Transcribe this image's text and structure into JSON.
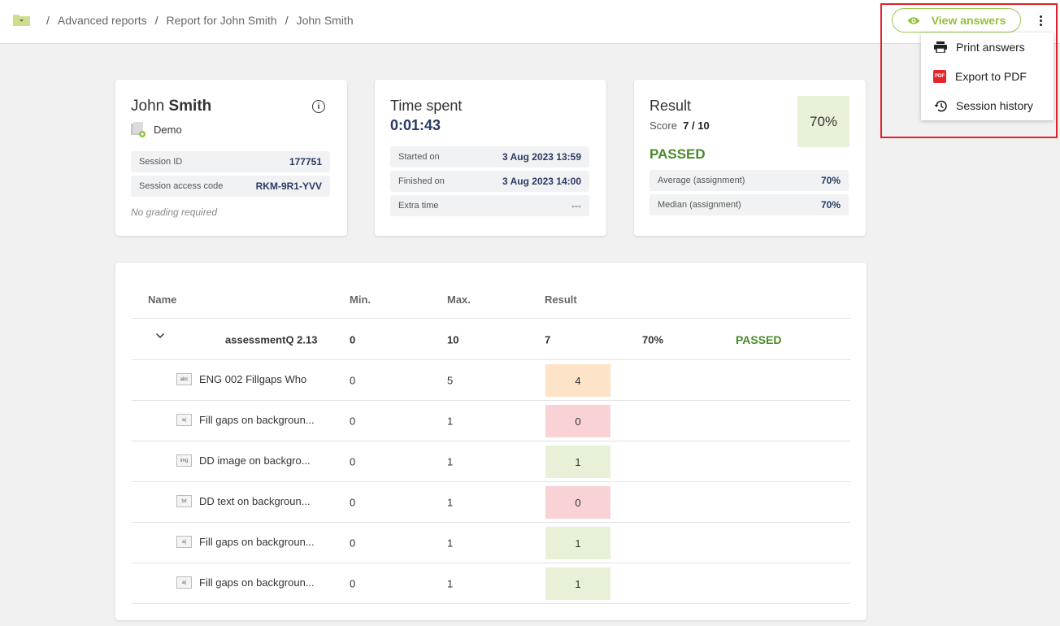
{
  "breadcrumb": {
    "items": [
      "Advanced reports",
      "Report for John Smith",
      "John Smith"
    ],
    "separator": "/"
  },
  "toolbar": {
    "view_answers": "View answers"
  },
  "menu": {
    "items": [
      {
        "label": "Print answers",
        "icon": "printer-icon"
      },
      {
        "label": "Export to PDF",
        "icon": "pdf-icon",
        "icon_text": "PDF"
      },
      {
        "label": "Session history",
        "icon": "history-icon"
      }
    ]
  },
  "candidate": {
    "first_name": "John",
    "last_name": "Smith",
    "group": "Demo",
    "session_id_label": "Session ID",
    "session_id": "177751",
    "access_code_label": "Session access code",
    "access_code": "RKM-9R1-YVV",
    "grading_note": "No grading required"
  },
  "time": {
    "title": "Time spent",
    "value": "0:01:43",
    "started_label": "Started on",
    "started": "3 Aug 2023 13:59",
    "finished_label": "Finished on",
    "finished": "3 Aug 2023 14:00",
    "extra_label": "Extra time",
    "extra": "---"
  },
  "result": {
    "title": "Result",
    "score_label": "Score",
    "score": "7 / 10",
    "percent": "70%",
    "status": "PASSED",
    "average_label": "Average (assignment)",
    "average": "70%",
    "median_label": "Median (assignment)",
    "median": "70%"
  },
  "table": {
    "headers": {
      "name": "Name",
      "min": "Min.",
      "max": "Max.",
      "result": "Result"
    },
    "summary": {
      "name": "assessmentQ 2.13",
      "min": "0",
      "max": "10",
      "result": "7",
      "percent": "70%",
      "status": "PASSED"
    },
    "rows": [
      {
        "name": "ENG 002 Fillgaps Who",
        "min": "0",
        "max": "5",
        "result": "4",
        "icon": "abc",
        "color": "#fde3c8"
      },
      {
        "name": "Fill gaps on backgroun...",
        "min": "0",
        "max": "1",
        "result": "0",
        "icon": "a|",
        "color": "#f9d2d6"
      },
      {
        "name": "DD image on backgro...",
        "min": "0",
        "max": "1",
        "result": "1",
        "icon": "img",
        "color": "#e7f1d7"
      },
      {
        "name": "DD text on backgroun...",
        "min": "0",
        "max": "1",
        "result": "0",
        "icon": "txt",
        "color": "#f9d2d6"
      },
      {
        "name": "Fill gaps on backgroun...",
        "min": "0",
        "max": "1",
        "result": "1",
        "icon": "a|",
        "color": "#e7f1d7"
      },
      {
        "name": "Fill gaps on backgroun...",
        "min": "0",
        "max": "1",
        "result": "1",
        "icon": "a|",
        "color": "#e7f1d7"
      }
    ]
  }
}
